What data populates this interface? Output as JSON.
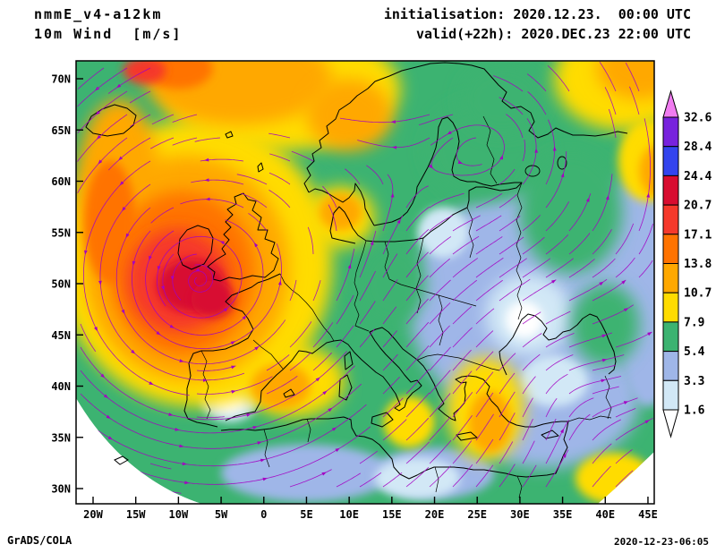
{
  "header": {
    "model": "nmmE_v4-a12km",
    "field": "10m Wind  [m/s]",
    "initialisation": "initialisation: 2020.12.23.  00:00 UTC",
    "valid": "valid(+22h): 2020.DEC.23 22:00 UTC"
  },
  "footer": {
    "left": "GrADS/COLA",
    "right": "2020-12-23-06:05"
  },
  "axes": {
    "lat_labels": [
      "70N",
      "65N",
      "60N",
      "55N",
      "50N",
      "45N",
      "40N",
      "35N",
      "30N"
    ],
    "lon_labels": [
      "20W",
      "15W",
      "10W",
      "5W",
      "0",
      "5E",
      "10E",
      "15E",
      "20E",
      "25E",
      "30E",
      "35E",
      "40E",
      "45E"
    ]
  },
  "colorbar": {
    "labels_top_to_bottom": [
      "32.6",
      "28.4",
      "24.4",
      "20.7",
      "17.1",
      "13.8",
      "10.7",
      "7.9",
      "5.4",
      "3.3",
      "1.6"
    ],
    "colors_bottom_to_top": [
      "#ffffff",
      "#d2e8f6",
      "#9fb6e8",
      "#3cb371",
      "#ffdc00",
      "#ffa800",
      "#ff7300",
      "#f5392b",
      "#d80d30",
      "#3344ee",
      "#7722dd",
      "#f07cf0"
    ]
  },
  "chart_data": {
    "type": "heatmap",
    "title": "10m Wind [m/s]",
    "model": "nmmE_v4-a12km",
    "initialisation": "2020.12.23. 00:00 UTC",
    "valid": "2020.DEC.23 22:00 UTC (+22h)",
    "units": "m/s",
    "region": {
      "lon_min": -23,
      "lon_max": 46,
      "lat_min": 29,
      "lat_max": 72
    },
    "x_axis_ticks": [
      "20W",
      "15W",
      "10W",
      "5W",
      "0",
      "5E",
      "10E",
      "15E",
      "20E",
      "25E",
      "30E",
      "35E",
      "40E",
      "45E"
    ],
    "y_axis_ticks": [
      "70N",
      "65N",
      "60N",
      "55N",
      "50N",
      "45N",
      "40N",
      "35N",
      "30N"
    ],
    "levels": [
      1.6,
      3.3,
      5.4,
      7.9,
      10.7,
      13.8,
      17.1,
      20.7,
      24.4,
      28.4,
      32.6
    ],
    "palette_bottom_to_top": [
      "#ffffff",
      "#d2e8f6",
      "#9fb6e8",
      "#3cb371",
      "#ffdc00",
      "#ffa800",
      "#ff7300",
      "#f5392b",
      "#d80d30",
      "#3344ee",
      "#7722dd",
      "#f07cf0"
    ],
    "overlays": {
      "streamlines": "#a300c2",
      "coastlines_and_borders": "#000000"
    },
    "notes": "Deep Atlantic storm: 10m winds above 20.7 m/s (dark red) over the Celtic Sea west of Brittany, gale band over NE Atlantic, UK, Biscay and the Norwegian Sea; light winds below 5.4 m/s (blue shades) over eastern Europe, the Balkans, Anatolia and north Africa; magenta streamlines show cyclonic circulation around the low.",
    "features": [
      {
        "name": "light-winds-east-europe",
        "lon": 30,
        "lat": 48,
        "rx_deg": 13,
        "ry_deg": 11,
        "min_level": 3.3
      },
      {
        "name": "light-winds-anatolia-balkans",
        "lon": 33,
        "lat": 39,
        "rx_deg": 11,
        "ry_deg": 7,
        "min_level": 3.3
      },
      {
        "name": "light-winds-russia",
        "lon": 43,
        "lat": 51,
        "rx_deg": 7,
        "ry_deg": 9,
        "min_level": 3.3
      },
      {
        "name": "light-winds-caspian-edge",
        "lon": 45,
        "lat": 44,
        "rx_deg": 3,
        "ry_deg": 6,
        "min_level": 3.3
      },
      {
        "name": "light-winds-north-africa-west",
        "lon": 5,
        "lat": 31.5,
        "rx_deg": 10,
        "ry_deg": 2.8,
        "min_level": 3.3
      },
      {
        "name": "light-winds-libya",
        "lon": 20,
        "lat": 31.5,
        "rx_deg": 7,
        "ry_deg": 2.5,
        "min_level": 3.3
      },
      {
        "name": "calm-ukraine",
        "lon": 31,
        "lat": 47,
        "rx_deg": 5,
        "ry_deg": 4,
        "min_level": 1.6
      },
      {
        "name": "calm-east-anatolia",
        "lon": 34,
        "lat": 40.5,
        "rx_deg": 4,
        "ry_deg": 2.5,
        "min_level": 1.6
      },
      {
        "name": "calm-baltics",
        "lon": 21,
        "lat": 55,
        "rx_deg": 3,
        "ry_deg": 2.5,
        "min_level": 1.6
      },
      {
        "name": "calm-iberia-interior",
        "lon": -4,
        "lat": 39,
        "rx_deg": 3.5,
        "ry_deg": 2.5,
        "min_level": 1.6
      },
      {
        "name": "calm-libya-interior",
        "lon": 18,
        "lat": 31,
        "rx_deg": 5,
        "ry_deg": 2,
        "min_level": 1.6
      },
      {
        "name": "calm-spot-iberia",
        "lon": -4,
        "lat": 38.6,
        "rx_deg": 1.8,
        "ry_deg": 1.2,
        "min_level": 0
      },
      {
        "name": "calm-spot-ukraine",
        "lon": 30.5,
        "lat": 46.5,
        "rx_deg": 2.2,
        "ry_deg": 1.8,
        "min_level": 0
      },
      {
        "name": "moderate-north-sea",
        "lon": 4.5,
        "lat": 57,
        "rx_deg": 4.5,
        "ry_deg": 4.5,
        "min_level": 5.4
      },
      {
        "name": "moderate-finland",
        "lon": 26,
        "lat": 63,
        "rx_deg": 7,
        "ry_deg": 5,
        "min_level": 5.4
      },
      {
        "name": "moderate-nw-russia",
        "lon": 36,
        "lat": 57,
        "rx_deg": 6,
        "ry_deg": 6,
        "min_level": 5.4
      },
      {
        "name": "moderate-central-europe",
        "lon": 15,
        "lat": 50,
        "rx_deg": 4,
        "ry_deg": 4,
        "min_level": 5.4
      },
      {
        "name": "moderate-east-france",
        "lon": 7,
        "lat": 46.5,
        "rx_deg": 3,
        "ry_deg": 2.5,
        "min_level": 5.4
      },
      {
        "name": "moderate-right-edge",
        "lon": 40,
        "lat": 46,
        "rx_deg": 4,
        "ry_deg": 4,
        "min_level": 5.4
      },
      {
        "name": "moderate-barents",
        "lon": 28,
        "lat": 68,
        "rx_deg": 5,
        "ry_deg": 3.5,
        "min_level": 5.4
      },
      {
        "name": "fresh-gale-atlantic-halo",
        "lon": -8,
        "lat": 52,
        "rx_deg": 16,
        "ry_deg": 14,
        "min_level": 7.9
      },
      {
        "name": "fresh-norwegian-sea-band",
        "lon": 2,
        "lat": 69,
        "rx_deg": 14,
        "ry_deg": 6,
        "min_level": 7.9
      },
      {
        "name": "fresh-ne-corner",
        "lon": 42,
        "lat": 70,
        "rx_deg": 8,
        "ry_deg": 5,
        "min_level": 7.9
      },
      {
        "name": "fresh-right-edge-60n",
        "lon": 45,
        "lat": 62,
        "rx_deg": 3.5,
        "ry_deg": 4,
        "min_level": 7.9
      },
      {
        "name": "fresh-denmark",
        "lon": 9,
        "lat": 56.5,
        "rx_deg": 4,
        "ry_deg": 3,
        "min_level": 7.9
      },
      {
        "name": "fresh-aegean",
        "lon": 26,
        "lat": 37.8,
        "rx_deg": 4.5,
        "ry_deg": 5,
        "min_level": 7.9
      },
      {
        "name": "fresh-west-med",
        "lon": 3.5,
        "lat": 40.5,
        "rx_deg": 6,
        "ry_deg": 3.5,
        "min_level": 7.9
      },
      {
        "name": "fresh-ionian",
        "lon": 17,
        "lat": 36.5,
        "rx_deg": 3,
        "ry_deg": 2.5,
        "min_level": 7.9
      },
      {
        "name": "fresh-mesopotamia",
        "lon": 41,
        "lat": 31,
        "rx_deg": 4.5,
        "ry_deg": 2.5,
        "min_level": 7.9
      },
      {
        "name": "strong-atlantic",
        "lon": -9,
        "lat": 51.5,
        "rx_deg": 12,
        "ry_deg": 11,
        "min_level": 10.7
      },
      {
        "name": "strong-arctic-band",
        "lon": -3,
        "lat": 70,
        "rx_deg": 11,
        "ry_deg": 4.5,
        "min_level": 10.7
      },
      {
        "name": "strong-left-edge",
        "lon": -17,
        "lat": 59,
        "rx_deg": 5,
        "ry_deg": 9,
        "min_level": 10.7
      },
      {
        "name": "strong-norway-coast",
        "lon": 10,
        "lat": 66.5,
        "rx_deg": 5,
        "ry_deg": 3.5,
        "min_level": 10.7
      },
      {
        "name": "strong-ne-corner",
        "lon": 44,
        "lat": 71,
        "rx_deg": 5,
        "ry_deg": 3,
        "min_level": 10.7
      },
      {
        "name": "strong-right-edge-61n",
        "lon": 46,
        "lat": 61,
        "rx_deg": 2,
        "ry_deg": 2.5,
        "min_level": 10.7
      },
      {
        "name": "strong-aegean-core",
        "lon": 26.5,
        "lat": 36.5,
        "rx_deg": 2.5,
        "ry_deg": 3,
        "min_level": 10.7
      },
      {
        "name": "strong-gulf-of-lion",
        "lon": 2,
        "lat": 40,
        "rx_deg": 3.5,
        "ry_deg": 2.2,
        "min_level": 10.7
      },
      {
        "name": "strong-denmark-core",
        "lon": 9,
        "lat": 57,
        "rx_deg": 2.5,
        "ry_deg": 1.8,
        "min_level": 10.7
      },
      {
        "name": "gale-atlantic",
        "lon": -9.5,
        "lat": 51,
        "rx_deg": 8.5,
        "ry_deg": 8,
        "min_level": 13.8
      },
      {
        "name": "gale-left-edge",
        "lon": -18,
        "lat": 56,
        "rx_deg": 3,
        "ry_deg": 6,
        "min_level": 13.8
      },
      {
        "name": "gale-top-left",
        "lon": -10,
        "lat": 71,
        "rx_deg": 4,
        "ry_deg": 2,
        "min_level": 13.8
      },
      {
        "name": "severe-gale-celtic",
        "lon": -10,
        "lat": 50.3,
        "rx_deg": 6,
        "ry_deg": 5,
        "min_level": 17.1
      },
      {
        "name": "severe-top-left",
        "lon": -14,
        "lat": 70.8,
        "rx_deg": 2.5,
        "ry_deg": 1.3,
        "min_level": 17.1
      },
      {
        "name": "storm-core-celtic-sea",
        "lon": -8.5,
        "lat": 49.8,
        "rx_deg": 4,
        "ry_deg": 2.6,
        "min_level": 20.7
      },
      {
        "name": "storm-core-biscay",
        "lon": -6,
        "lat": 48.5,
        "rx_deg": 2.5,
        "ry_deg": 1.8,
        "min_level": 20.7
      }
    ]
  }
}
